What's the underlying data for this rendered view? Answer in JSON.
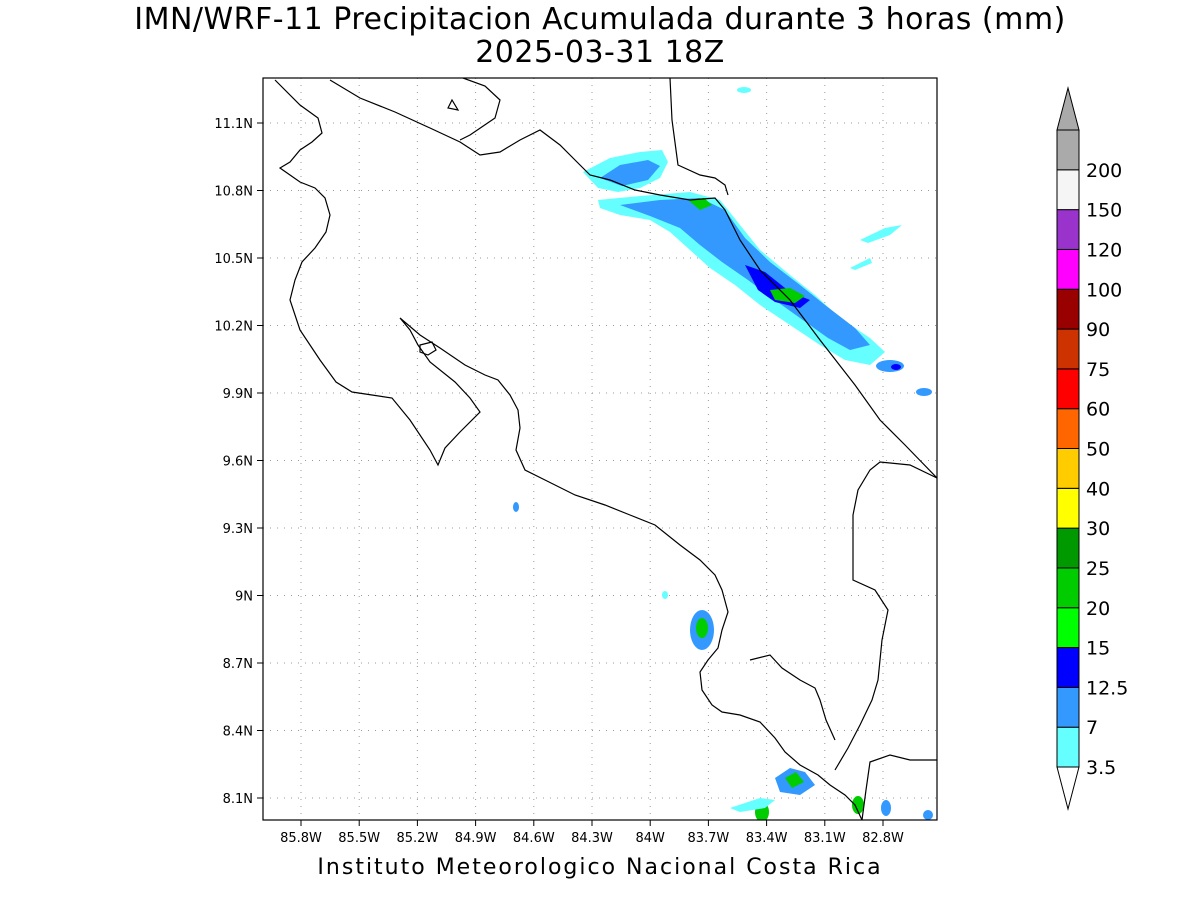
{
  "title": {
    "line1": "IMN/WRF-11 Precipitacion Acumulada durante 3 horas (mm)",
    "line2": "2025-03-31 18Z"
  },
  "credit": "Instituto Meteorologico Nacional Costa Rica",
  "axes": {
    "lon_labels": [
      "85.8W",
      "85.5W",
      "85.2W",
      "84.9W",
      "84.6W",
      "84.3W",
      "84W",
      "83.7W",
      "83.4W",
      "83.1W",
      "82.8W"
    ],
    "lat_labels": [
      "11.1N",
      "10.8N",
      "10.5N",
      "10.2N",
      "9.9N",
      "9.6N",
      "9.3N",
      "9N",
      "8.7N",
      "8.4N",
      "8.1N"
    ],
    "grid": true
  },
  "colorbar": {
    "labels": [
      "3.5",
      "7",
      "12.5",
      "15",
      "20",
      "25",
      "30",
      "40",
      "50",
      "60",
      "75",
      "90",
      "100",
      "120",
      "150",
      "200"
    ],
    "colors": [
      "#66ffff",
      "#3399ff",
      "#0000ff",
      "#00ff00",
      "#00cc00",
      "#009900",
      "#ffff00",
      "#ffcc00",
      "#ff6600",
      "#ff0000",
      "#cc3300",
      "#990000",
      "#ff00ff",
      "#9933cc",
      "#f5f5f5",
      "#aaaaaa"
    ]
  }
}
